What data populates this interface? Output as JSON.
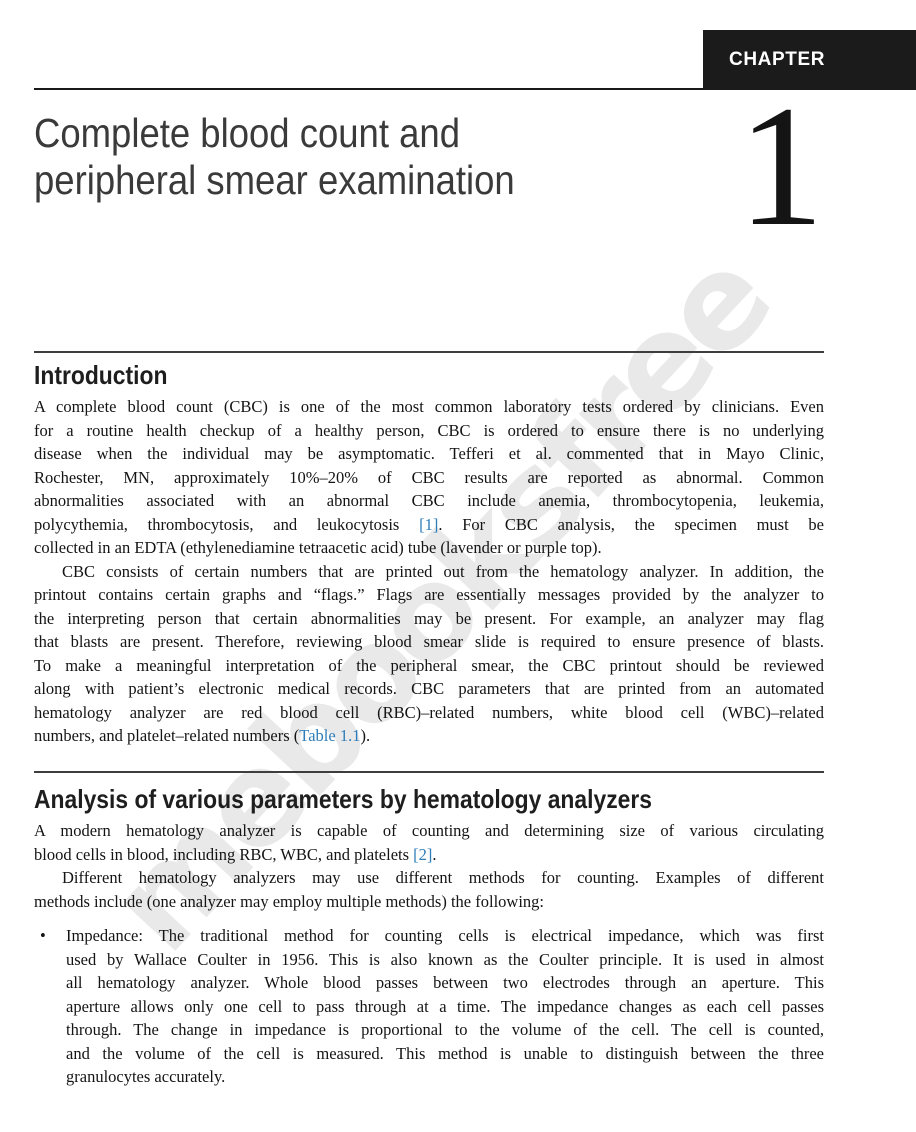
{
  "colors": {
    "link": "#2e7db8",
    "chapter_box": "#1b1b1b",
    "watermark": "#e9e9e9"
  },
  "watermark": {
    "text": "mebooksfree"
  },
  "header": {
    "chapter_label": "CHAPTER",
    "chapter_number": "1",
    "title_lines": [
      "Complete blood count and",
      "peripheral smear examination"
    ]
  },
  "sections": [
    {
      "id": "introduction",
      "heading": "Introduction",
      "blocks": [
        {
          "type": "paragraph",
          "indent": false,
          "lines": [
            [
              {
                "t": "A complete blood count (CBC) is one of the most common laboratory tests ordered by clinicians. Even"
              }
            ],
            [
              {
                "t": "for a routine health checkup of a healthy person, CBC is ordered to ensure there is no underlying"
              }
            ],
            [
              {
                "t": "disease when the individual may be asymptomatic. Tefferi et al. commented that in Mayo Clinic,"
              }
            ],
            [
              {
                "t": "Rochester, MN, approximately 10%–20% of CBC results are reported as abnormal. Common"
              }
            ],
            [
              {
                "t": "abnormalities associated with an abnormal CBC include anemia, thrombocytopenia, leukemia,"
              }
            ],
            [
              {
                "t": "polycythemia, thrombocytosis, and leukocytosis "
              },
              {
                "t": "[1]",
                "link": true
              },
              {
                "t": ". For CBC analysis, the specimen must be"
              }
            ],
            [
              {
                "t": "collected in an EDTA (ethylenediamine tetraacetic acid) tube (lavender or purple top)."
              }
            ]
          ]
        },
        {
          "type": "paragraph",
          "indent": true,
          "lines": [
            [
              {
                "t": "CBC consists of certain numbers that are printed out from the hematology analyzer. In addition, the"
              }
            ],
            [
              {
                "t": "printout contains certain graphs and “flags.” Flags are essentially messages provided by the analyzer to"
              }
            ],
            [
              {
                "t": "the interpreting person that certain abnormalities may be present. For example, an analyzer may flag"
              }
            ],
            [
              {
                "t": "that blasts are present. Therefore, reviewing blood smear slide is required to ensure presence of blasts."
              }
            ],
            [
              {
                "t": "To make a meaningful interpretation of the peripheral smear, the CBC printout should be reviewed"
              }
            ],
            [
              {
                "t": "along with patient’s electronic medical records. CBC parameters that are printed from an automated"
              }
            ],
            [
              {
                "t": "hematology analyzer are red blood cell (RBC)–related numbers, white blood cell (WBC)–related"
              }
            ],
            [
              {
                "t": "numbers, and platelet–related numbers ("
              },
              {
                "t": "Table 1.1",
                "link": true
              },
              {
                "t": ")."
              }
            ]
          ]
        }
      ]
    },
    {
      "id": "analysis",
      "heading": "Analysis of various parameters by hematology analyzers",
      "blocks": [
        {
          "type": "paragraph",
          "indent": false,
          "lines": [
            [
              {
                "t": "A modern hematology analyzer is capable of counting and determining size of various circulating"
              }
            ],
            [
              {
                "t": "blood cells in blood, including RBC, WBC, and platelets "
              },
              {
                "t": "[2]",
                "link": true
              },
              {
                "t": "."
              }
            ]
          ]
        },
        {
          "type": "paragraph",
          "indent": true,
          "lines": [
            [
              {
                "t": "Different hematology analyzers may use different methods for counting. Examples of different"
              }
            ],
            [
              {
                "t": "methods include (one analyzer may employ multiple methods) the following:"
              }
            ]
          ]
        },
        {
          "type": "bullet",
          "marker": "•",
          "lines": [
            [
              {
                "t": "Impedance: The traditional method for counting cells is electrical impedance, which was first"
              }
            ],
            [
              {
                "t": "used by Wallace Coulter in 1956. This is also known as the Coulter principle. It is used in almost"
              }
            ],
            [
              {
                "t": "all hematology analyzer. Whole blood passes between two electrodes through an aperture. This"
              }
            ],
            [
              {
                "t": "aperture allows only one cell to pass through at a time. The impedance changes as each cell passes"
              }
            ],
            [
              {
                "t": "through. The change in impedance is proportional to the volume of the cell. The cell is counted,"
              }
            ],
            [
              {
                "t": "and the volume of the cell is measured. This method is unable to distinguish between the three"
              }
            ],
            [
              {
                "t": "granulocytes accurately."
              }
            ]
          ]
        }
      ]
    }
  ]
}
